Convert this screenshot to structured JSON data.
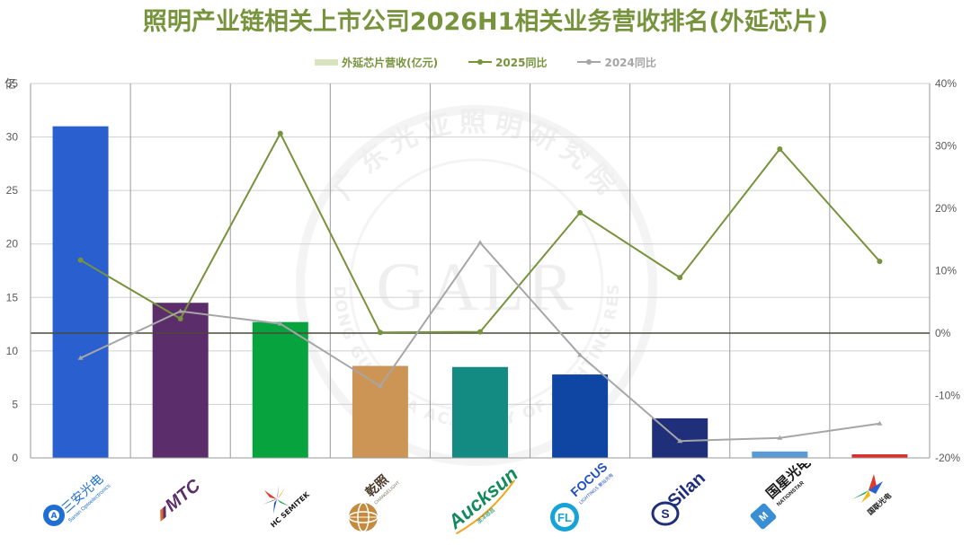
{
  "chart_data": {
    "type": "bar",
    "title": "照明产业链相关上市公司2026H1相关业务营收排名(外延芯片)",
    "ylabel": "亿",
    "ylim": [
      0,
      35
    ],
    "y2lim": [
      -20,
      40
    ],
    "y_ticks": [
      "0",
      "5",
      "10",
      "15",
      "20",
      "25",
      "30",
      "35"
    ],
    "y2_ticks": [
      "-20%",
      "-10%",
      "0%",
      "10%",
      "20%",
      "30%",
      "40%"
    ],
    "legend_position": "top",
    "grid": true,
    "categories": [
      "三安光电",
      "MTC",
      "HC SEMITEK",
      "乾照",
      "Aucksun",
      "FOCUS",
      "Silan",
      "国星光电",
      "国联光电"
    ],
    "series": [
      {
        "name": "外延芯片营收(亿元)",
        "type": "bar",
        "values": [
          31.0,
          14.5,
          12.7,
          8.6,
          8.5,
          7.8,
          3.7,
          0.6,
          0.3
        ]
      },
      {
        "name": "2025同比",
        "type": "line",
        "axis": "right",
        "values": [
          11.7,
          2.3,
          32.0,
          0.1,
          0.2,
          19.3,
          8.9,
          29.5,
          11.5
        ]
      },
      {
        "name": "2024同比",
        "type": "line",
        "axis": "right",
        "values": [
          -4.0,
          3.5,
          1.5,
          -8.5,
          14.5,
          -3.5,
          -17.3,
          -16.8,
          -14.5
        ]
      }
    ],
    "bar_colors": [
      "#2a5fcf",
      "#5c2d6b",
      "#06a33f",
      "#cc9556",
      "#138a82",
      "#0f45a3",
      "#1f2f7a",
      "#5a9bd5",
      "#d9302b"
    ],
    "line_colors": [
      "#77933c",
      "#a6a6a6"
    ]
  },
  "watermark": {
    "cn": "广东光亚照明研究院",
    "en": "GUANGDONG GUANGYA ACADEMY OF LIGHTING RESEARCH",
    "abbr": "GALR"
  },
  "logos": [
    {
      "name": "sanan-logo",
      "text": "三安光电",
      "sub": "Sanan Optoelectronics"
    },
    {
      "name": "mtc-logo",
      "text": "MTC"
    },
    {
      "name": "hc-semitek-logo",
      "text": "HC SEMITEK"
    },
    {
      "name": "changelight-logo",
      "text": "乾照",
      "sub": "CHANGELIGHT"
    },
    {
      "name": "aucksun-logo",
      "text": "Aucksun",
      "sub": "澳洋顺昌"
    },
    {
      "name": "focus-logo",
      "text": "FOCUS",
      "sub": "LIGHTINGS 聚灿光电"
    },
    {
      "name": "silan-logo",
      "text": "Silan"
    },
    {
      "name": "nationstar-logo",
      "text": "国星光电",
      "sub": "NATIONSTAR"
    },
    {
      "name": "guolian-logo",
      "text": "国联光电"
    }
  ]
}
